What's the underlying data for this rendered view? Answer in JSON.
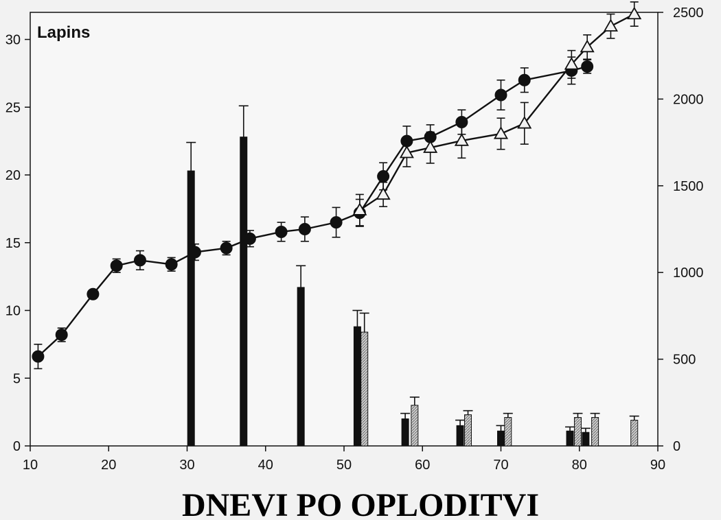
{
  "chart_data": {
    "type": "bar",
    "title": "Lapins",
    "xlabel": "DNEVI PO OPLODITVI",
    "ylabel_left": "",
    "ylabel_right": "",
    "xlim": [
      10,
      90
    ],
    "ylim_left": [
      0,
      32
    ],
    "ylim_right": [
      0,
      2500
    ],
    "x_ticks": [
      10,
      20,
      30,
      40,
      50,
      60,
      70,
      80,
      90
    ],
    "y_left_ticks": [
      0,
      5,
      10,
      15,
      20,
      25,
      30
    ],
    "y_right_ticks": [
      0,
      500,
      1000,
      1500,
      2000,
      2500
    ],
    "grid": false,
    "legend": "none",
    "colors": {
      "black_series": "#111111",
      "hatched_series": "#b8b8b8",
      "panel_bg": "#f7f7f7",
      "axis": "#111111"
    },
    "series": [
      {
        "kind": "line",
        "axis": "left",
        "marker": "filled-circle",
        "points": [
          {
            "x": 11,
            "y": 6.6,
            "err": 0.9
          },
          {
            "x": 14,
            "y": 8.2,
            "err": 0.5
          },
          {
            "x": 18,
            "y": 11.2,
            "err": 0.3
          },
          {
            "x": 21,
            "y": 13.3,
            "err": 0.5
          },
          {
            "x": 24,
            "y": 13.7,
            "err": 0.7
          },
          {
            "x": 28,
            "y": 13.4,
            "err": 0.5
          },
          {
            "x": 31,
            "y": 14.3,
            "err": 0.6
          },
          {
            "x": 35,
            "y": 14.6,
            "err": 0.5
          },
          {
            "x": 38,
            "y": 15.3,
            "err": 0.6
          },
          {
            "x": 42,
            "y": 15.8,
            "err": 0.7
          },
          {
            "x": 45,
            "y": 16.0,
            "err": 0.9
          },
          {
            "x": 49,
            "y": 16.5,
            "err": 1.1
          },
          {
            "x": 52,
            "y": 17.2,
            "err": 1.0
          },
          {
            "x": 55,
            "y": 19.9,
            "err": 1.0
          },
          {
            "x": 58,
            "y": 22.5,
            "err": 1.1
          },
          {
            "x": 61,
            "y": 22.8,
            "err": 0.9
          },
          {
            "x": 65,
            "y": 23.9,
            "err": 0.9
          },
          {
            "x": 70,
            "y": 25.9,
            "err": 1.1
          },
          {
            "x": 73,
            "y": 27.0,
            "err": 0.9
          },
          {
            "x": 79,
            "y": 27.7,
            "err": 1.0
          },
          {
            "x": 81,
            "y": 28.0,
            "err": 0.5
          }
        ]
      },
      {
        "kind": "line",
        "axis": "right",
        "marker": "open-triangle",
        "points": [
          {
            "x": 52,
            "y": 1360,
            "err": 90
          },
          {
            "x": 55,
            "y": 1450,
            "err": 70
          },
          {
            "x": 58,
            "y": 1690,
            "err": 80
          },
          {
            "x": 61,
            "y": 1720,
            "err": 90
          },
          {
            "x": 65,
            "y": 1760,
            "err": 100
          },
          {
            "x": 70,
            "y": 1800,
            "err": 90
          },
          {
            "x": 73,
            "y": 1860,
            "err": 120
          },
          {
            "x": 79,
            "y": 2200,
            "err": 80
          },
          {
            "x": 81,
            "y": 2300,
            "err": 70
          },
          {
            "x": 84,
            "y": 2420,
            "err": 70
          },
          {
            "x": 87,
            "y": 2490,
            "err": 70
          }
        ]
      },
      {
        "kind": "bar",
        "axis": "left",
        "fill": "black",
        "bars": [
          {
            "x": 30.5,
            "y": 20.3,
            "err": 2.1
          },
          {
            "x": 37.2,
            "y": 22.8,
            "err": 2.3
          },
          {
            "x": 44.5,
            "y": 11.7,
            "err": 1.6
          },
          {
            "x": 51.7,
            "y": 8.8,
            "err": 1.2
          },
          {
            "x": 57.8,
            "y": 2.0,
            "err": 0.4
          },
          {
            "x": 64.8,
            "y": 1.5,
            "err": 0.4
          },
          {
            "x": 70.0,
            "y": 1.1,
            "err": 0.4
          },
          {
            "x": 78.8,
            "y": 1.1,
            "err": 0.3
          },
          {
            "x": 80.8,
            "y": 1.0,
            "err": 0.3
          }
        ]
      },
      {
        "kind": "bar",
        "axis": "left",
        "fill": "hatched",
        "bars": [
          {
            "x": 52.6,
            "y": 8.4,
            "err": 1.4
          },
          {
            "x": 59.0,
            "y": 3.0,
            "err": 0.6
          },
          {
            "x": 65.8,
            "y": 2.3,
            "err": 0.3
          },
          {
            "x": 70.9,
            "y": 2.1,
            "err": 0.3
          },
          {
            "x": 79.8,
            "y": 2.1,
            "err": 0.3
          },
          {
            "x": 82.0,
            "y": 2.1,
            "err": 0.3
          },
          {
            "x": 87.0,
            "y": 1.9,
            "err": 0.3
          }
        ]
      }
    ]
  }
}
